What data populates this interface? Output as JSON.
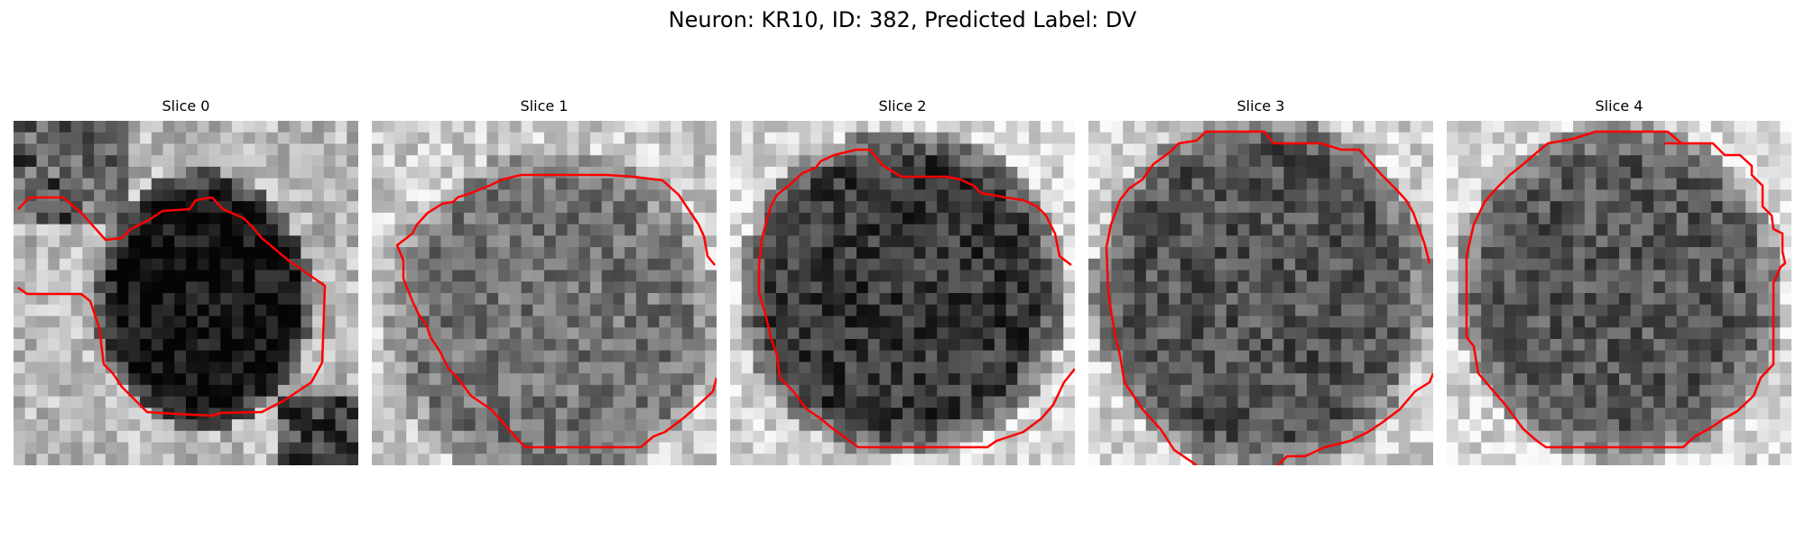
{
  "figure": {
    "title": "Neuron: KR10, ID: 382, Predicted Label: DV"
  },
  "panels": [
    {
      "title": "Slice 0"
    },
    {
      "title": "Slice 1"
    },
    {
      "title": "Slice 2"
    },
    {
      "title": "Slice 3"
    },
    {
      "title": "Slice 4"
    }
  ],
  "colors": {
    "contour": "#ff0000",
    "background": "#ffffff"
  }
}
